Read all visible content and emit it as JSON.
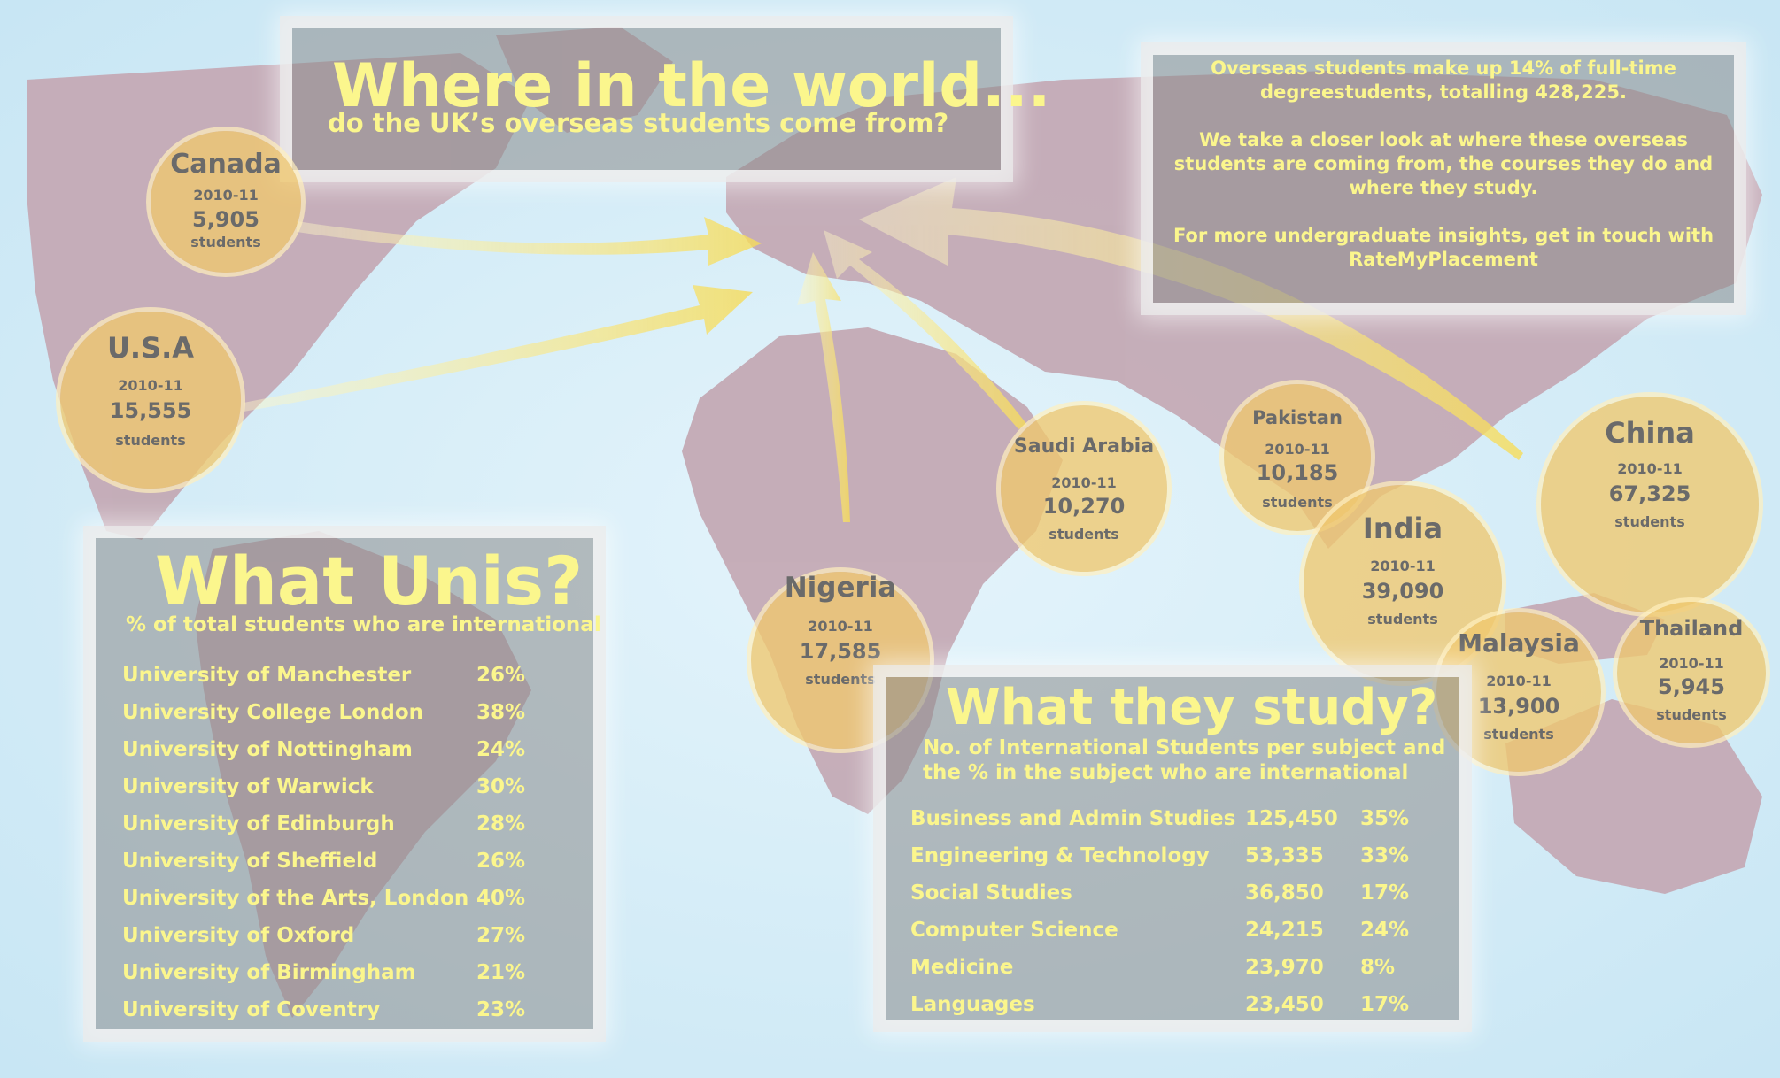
{
  "header": {
    "title": "Where in the world...",
    "subtitle": "do the UK’s overseas students come from?"
  },
  "intro": {
    "paragraphs": [
      "Overseas students make up 14% of full-time degreestudents, totalling 428,225.",
      "We take a closer look at where these overseas students are coming from, the courses they do and where they study.",
      "For more undergraduate insights, get in touch with RateMyPlacement"
    ]
  },
  "countries": [
    {
      "name": "Canada",
      "year": "2010-11",
      "count": "5,905",
      "unit": "students"
    },
    {
      "name": "U.S.A",
      "year": "2010-11",
      "count": "15,555",
      "unit": "students"
    },
    {
      "name": "Nigeria",
      "year": "2010-11",
      "count": "17,585",
      "unit": "students"
    },
    {
      "name": "Saudi Arabia",
      "year": "2010-11",
      "count": "10,270",
      "unit": "students"
    },
    {
      "name": "Pakistan",
      "year": "2010-11",
      "count": "10,185",
      "unit": "students"
    },
    {
      "name": "India",
      "year": "2010-11",
      "count": "39,090",
      "unit": "students"
    },
    {
      "name": "China",
      "year": "2010-11",
      "count": "67,325",
      "unit": "students"
    },
    {
      "name": "Malaysia",
      "year": "2010-11",
      "count": "13,900",
      "unit": "students"
    },
    {
      "name": "Thailand",
      "year": "2010-11",
      "count": "5,945",
      "unit": "students"
    }
  ],
  "unis": {
    "title": "What Unis?",
    "subtitle": "% of total students who are international",
    "rows": [
      {
        "name": "University of Manchester",
        "pct": "26%"
      },
      {
        "name": "University College London",
        "pct": "38%"
      },
      {
        "name": "University of Nottingham",
        "pct": "24%"
      },
      {
        "name": "University of Warwick",
        "pct": "30%"
      },
      {
        "name": "University of Edinburgh",
        "pct": "28%"
      },
      {
        "name": "University of Sheffield",
        "pct": "26%"
      },
      {
        "name": "University of the Arts, London",
        "pct": "40%"
      },
      {
        "name": "University of Oxford",
        "pct": "27%"
      },
      {
        "name": "University of Birmingham",
        "pct": "21%"
      },
      {
        "name": "University of Coventry",
        "pct": "23%"
      }
    ]
  },
  "subjects": {
    "title": "What they study?",
    "subtitle": "No. of International Students per subject and the % in the subject who are international",
    "rows": [
      {
        "name": "Business and Admin Studies",
        "count": "125,450",
        "pct": "35%"
      },
      {
        "name": "Engineering & Technology",
        "count": "53,335",
        "pct": "33%"
      },
      {
        "name": "Social Studies",
        "count": "36,850",
        "pct": "17%"
      },
      {
        "name": "Computer Science",
        "count": "24,215",
        "pct": "24%"
      },
      {
        "name": "Medicine",
        "count": "23,970",
        "pct": "8%"
      },
      {
        "name": "Languages",
        "count": "23,450",
        "pct": "17%"
      }
    ]
  },
  "colors": {
    "ocean": "#d8eef8",
    "land": "#c3a9b4",
    "panel": "#8c8c8c",
    "text_yellow": "#fbf68d",
    "bubble": "#f0c86e",
    "arrow": "#f8e070"
  }
}
